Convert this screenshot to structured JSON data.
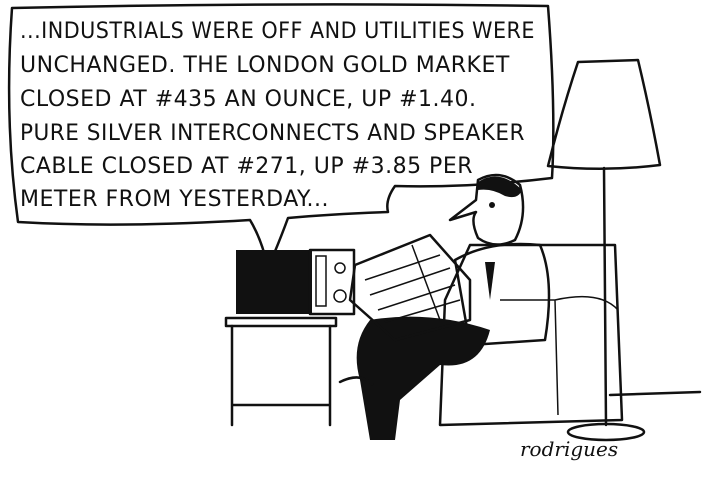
{
  "bubble": {
    "lines": [
      "...INDUSTRIALS WERE OFF AND UTILITIES WERE",
      "UNCHANGED.  THE LONDON GOLD MARKET",
      "CLOSED AT #435 AN OUNCE, UP #1.40.",
      "PURE SILVER INTERCONNECTS AND SPEAKER",
      "CABLE CLOSED AT #271, UP #3.85 PER",
      "METER FROM YESTERDAY..."
    ]
  },
  "signature": "rodrigues"
}
